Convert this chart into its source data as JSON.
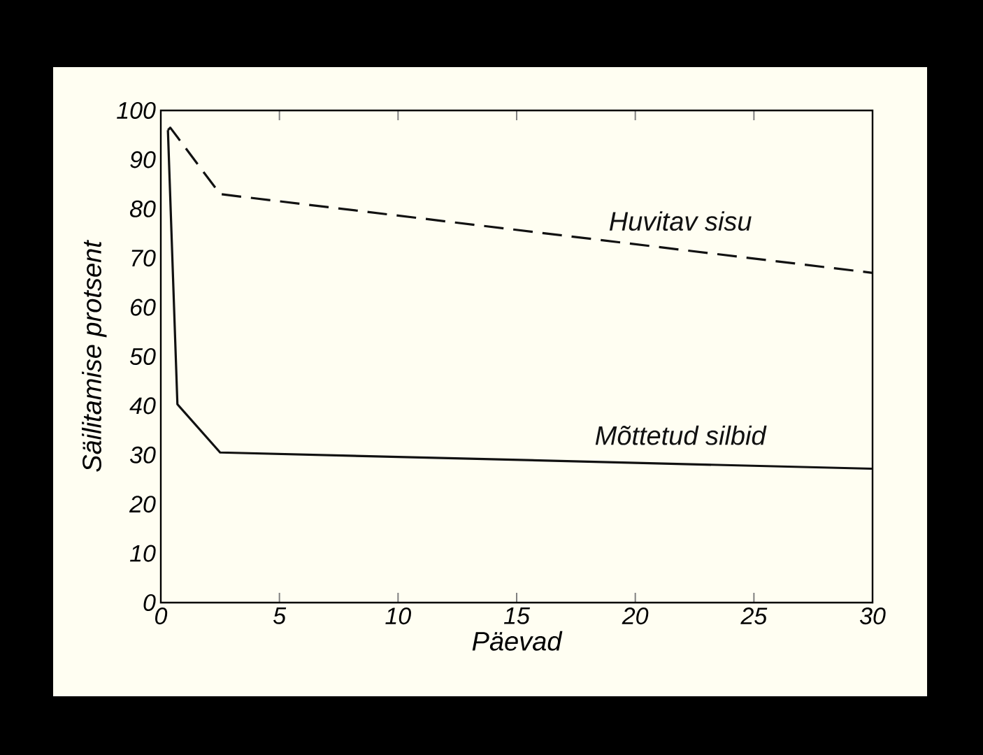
{
  "chart_data": {
    "type": "line",
    "xlabel": "Päevad",
    "ylabel": "Säilitamise  protsent",
    "xlim": [
      0,
      30
    ],
    "ylim": [
      0,
      100
    ],
    "xticks": [
      0,
      5,
      10,
      15,
      20,
      25,
      30
    ],
    "yticks": [
      0,
      10,
      20,
      30,
      40,
      50,
      60,
      70,
      80,
      90,
      100
    ],
    "grid": false,
    "legend": false,
    "marker": "none",
    "series": [
      {
        "name": "Huvitav sisu",
        "color": "#111111",
        "line_style": "dashed",
        "x": [
          0.3,
          0.4,
          2.5,
          30
        ],
        "values": [
          96,
          96.5,
          83,
          67
        ]
      },
      {
        "name": "Mõttetud silbid",
        "color": "#111111",
        "line_style": "solid",
        "x": [
          0.3,
          0.7,
          2.5,
          30
        ],
        "values": [
          96,
          40.3,
          30.5,
          27.2
        ]
      }
    ]
  }
}
